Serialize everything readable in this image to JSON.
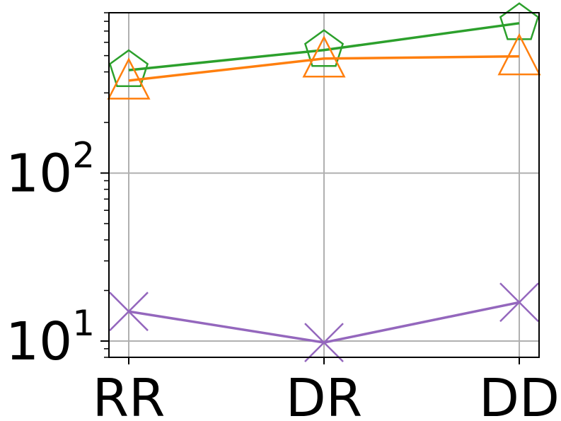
{
  "chart_data": {
    "type": "line",
    "categories": [
      "RR",
      "DR",
      "DD"
    ],
    "yscale": "log",
    "ylim": [
      8,
      900
    ],
    "grid": true,
    "y_major_ticks": [
      {
        "value": 10,
        "base": "10",
        "exp": "1"
      },
      {
        "value": 100,
        "base": "10",
        "exp": "2"
      }
    ],
    "series": [
      {
        "color": "#2ca02c",
        "marker": "pentagon",
        "values": [
          410,
          540,
          780
        ]
      },
      {
        "color": "#ff7f0e",
        "marker": "triangle",
        "values": [
          355,
          480,
          495
        ]
      },
      {
        "color": "#9467bd",
        "marker": "x",
        "values": [
          15,
          9.8,
          17
        ]
      }
    ]
  }
}
